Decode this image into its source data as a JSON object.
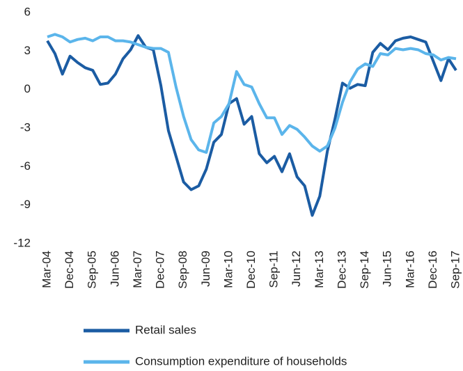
{
  "chart_data": {
    "type": "line",
    "categories": [
      "Mar-04",
      null,
      null,
      "Dec-04",
      null,
      null,
      "Sep-05",
      null,
      null,
      "Jun-06",
      null,
      null,
      "Mar-07",
      null,
      null,
      "Dec-07",
      null,
      null,
      "Sep-08",
      null,
      null,
      "Jun-09",
      null,
      null,
      "Mar-10",
      null,
      null,
      "Dec-10",
      null,
      null,
      "Sep-11",
      null,
      null,
      "Jun-12",
      null,
      null,
      "Mar-13",
      null,
      null,
      "Dec-13",
      null,
      null,
      "Sep-14",
      null,
      null,
      "Jun-15",
      null,
      null,
      "Mar-16",
      null,
      null,
      "Dec-16",
      null,
      null,
      "Sep-17"
    ],
    "series": [
      {
        "name": "Retail sales",
        "color": "#1b5ca3",
        "values": [
          3.8,
          2.8,
          1.2,
          2.6,
          2.1,
          1.7,
          1.5,
          0.4,
          0.5,
          1.2,
          2.4,
          3.1,
          4.2,
          3.3,
          3.1,
          0.3,
          -3.2,
          -5.2,
          -7.2,
          -7.8,
          -7.5,
          -6.2,
          -4.1,
          -3.5,
          -1.1,
          -0.7,
          -2.7,
          -2.1,
          -5.0,
          -5.7,
          -5.2,
          -6.4,
          -5.0,
          -6.8,
          -7.5,
          -9.8,
          -8.3,
          -4.8,
          -2.3,
          0.5,
          0.1,
          0.4,
          0.3,
          2.9,
          3.6,
          3.1,
          3.8,
          4.0,
          4.1,
          3.9,
          3.7,
          2.2,
          0.7,
          2.4,
          1.5
        ]
      },
      {
        "name": "Consumption expenditure of households",
        "color": "#5bb5eb",
        "values": [
          4.1,
          4.3,
          4.1,
          3.7,
          3.9,
          4.0,
          3.8,
          4.1,
          4.1,
          3.8,
          3.8,
          3.7,
          3.5,
          3.3,
          3.2,
          3.2,
          2.9,
          0.2,
          -2.1,
          -3.9,
          -4.7,
          -4.9,
          -2.6,
          -2.1,
          -1.1,
          1.4,
          0.4,
          0.2,
          -1.1,
          -2.2,
          -2.2,
          -3.5,
          -2.8,
          -3.1,
          -3.7,
          -4.4,
          -4.8,
          -4.4,
          -3.0,
          -1.0,
          0.6,
          1.6,
          2.0,
          1.8,
          2.8,
          2.7,
          3.2,
          3.1,
          3.2,
          3.1,
          2.8,
          2.7,
          2.3,
          2.5,
          2.4
        ]
      }
    ],
    "ylim": [
      -12,
      6
    ],
    "yticks": [
      6,
      3,
      0,
      -3,
      -6,
      -9,
      -12
    ],
    "grid": false,
    "legend": "bottom"
  }
}
